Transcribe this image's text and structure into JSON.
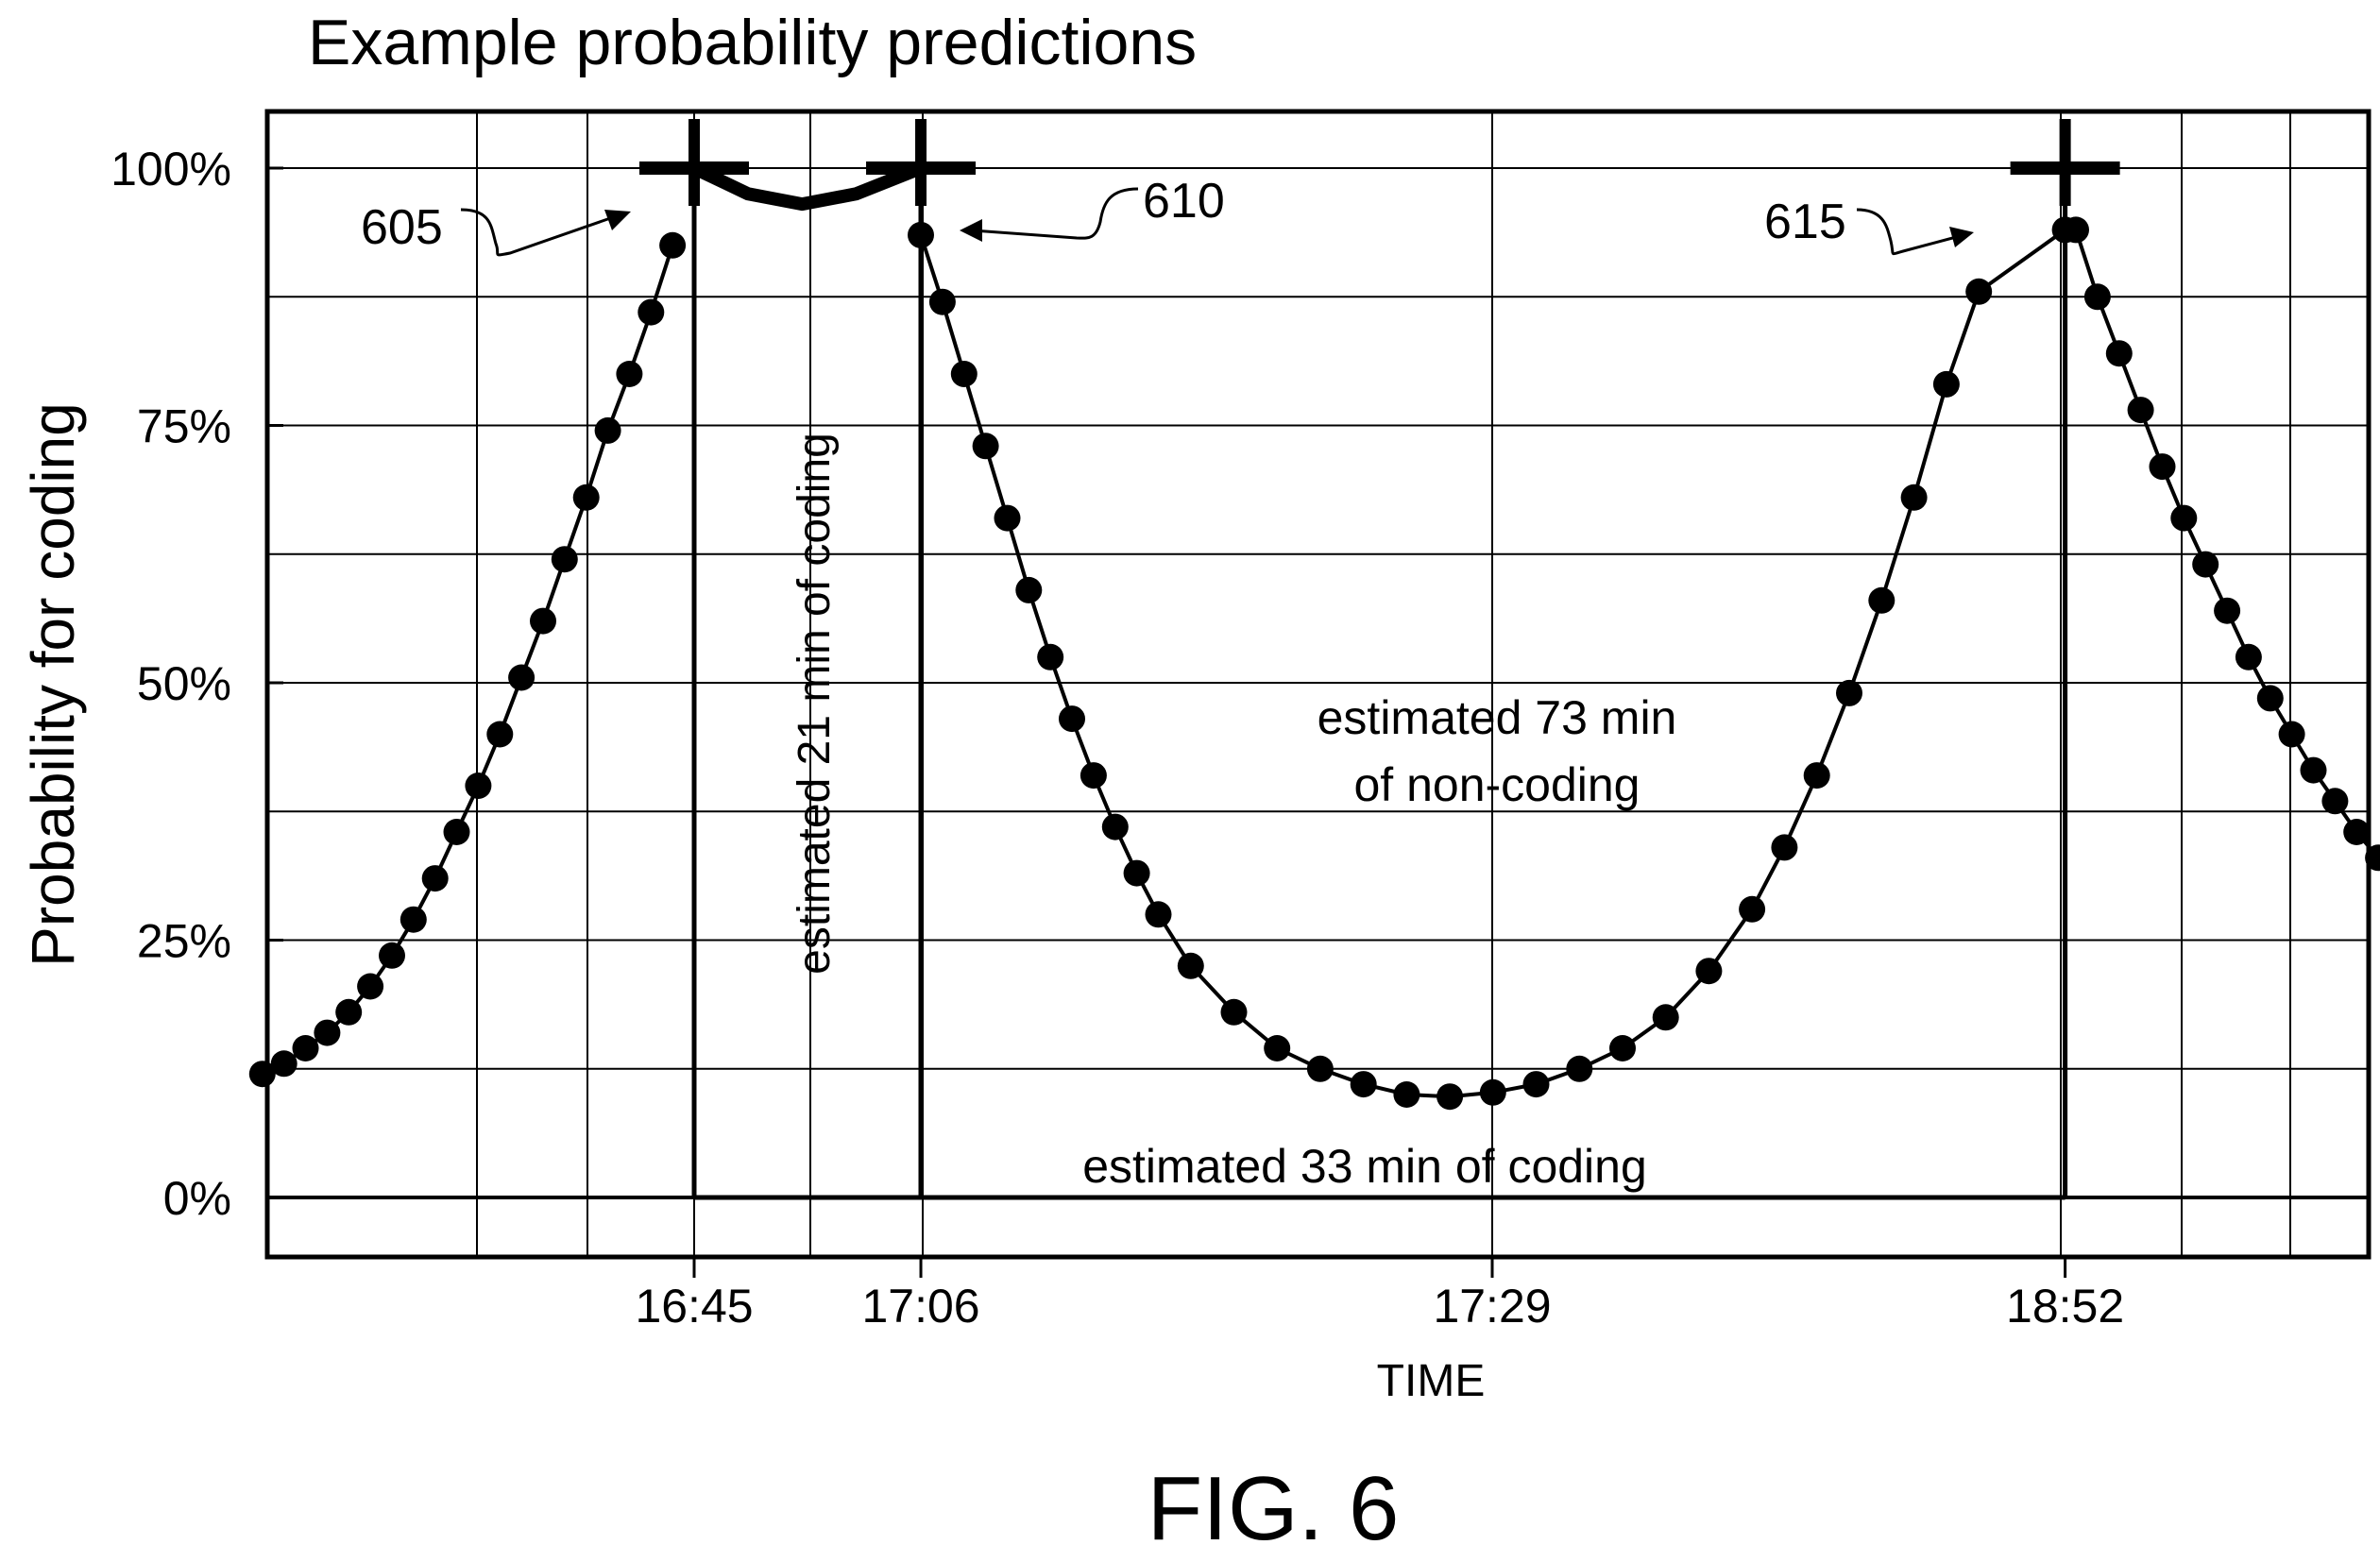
{
  "chart_data": {
    "type": "scatter",
    "title": "Example probability predictions",
    "xlabel": "TIME",
    "ylabel": "Probability for coding",
    "ylim": [
      0,
      100
    ],
    "grid": true,
    "y_ticks": [
      "0%",
      "25%",
      "50%",
      "75%",
      "100%"
    ],
    "x_ticks": [
      "16:45",
      "17:06",
      "17:29",
      "18:52"
    ],
    "figure_label": "FIG. 6",
    "callouts": [
      "605",
      "610",
      "615"
    ],
    "annotations": {
      "first_coding": "estimated 21 min of coding",
      "non_coding_line1": "estimated 73 min",
      "non_coding_line2": "of non-coding",
      "second_coding": "estimated 33 min of coding"
    },
    "coding_intervals": [
      {
        "start": "16:45",
        "end": "17:06"
      },
      {
        "start": "17:06",
        "end": "18:52"
      }
    ],
    "series": [
      {
        "segment": "before-16:45",
        "points": [
          [
            -40,
            12
          ],
          [
            -38,
            13
          ],
          [
            -36,
            14.5
          ],
          [
            -34,
            16
          ],
          [
            -32,
            18
          ],
          [
            -30,
            20.5
          ],
          [
            -28,
            23.5
          ],
          [
            -26,
            27
          ],
          [
            -24,
            31
          ],
          [
            -22,
            35.5
          ],
          [
            -20,
            40
          ],
          [
            -18,
            45
          ],
          [
            -16,
            50.5
          ],
          [
            -14,
            56
          ],
          [
            -12,
            62
          ],
          [
            -10,
            68
          ],
          [
            -8,
            74.5
          ],
          [
            -6,
            80
          ],
          [
            -4,
            86
          ],
          [
            -2,
            92.5
          ]
        ]
      },
      {
        "segment": "16:45-17:06",
        "points": [
          [
            0,
            100
          ],
          [
            5,
            97.5
          ],
          [
            10,
            96.5
          ],
          [
            15,
            97.5
          ],
          [
            21,
            100
          ]
        ]
      },
      {
        "segment": "17:06-18:52",
        "points": [
          [
            21,
            93.5
          ],
          [
            23,
            87
          ],
          [
            25,
            80
          ],
          [
            27,
            73
          ],
          [
            29,
            66
          ],
          [
            31,
            59
          ],
          [
            33,
            52.5
          ],
          [
            35,
            46.5
          ],
          [
            37,
            41
          ],
          [
            39,
            36
          ],
          [
            41,
            31.5
          ],
          [
            43,
            27.5
          ],
          [
            46,
            22.5
          ],
          [
            50,
            18
          ],
          [
            54,
            14.5
          ],
          [
            58,
            12.5
          ],
          [
            62,
            11
          ],
          [
            66,
            10
          ],
          [
            70,
            9.8
          ],
          [
            74,
            10.2
          ],
          [
            78,
            11
          ],
          [
            82,
            12.5
          ],
          [
            86,
            14.5
          ],
          [
            90,
            17.5
          ],
          [
            94,
            22
          ],
          [
            98,
            28
          ],
          [
            101,
            34
          ],
          [
            104,
            41
          ],
          [
            107,
            49
          ],
          [
            110,
            58
          ],
          [
            113,
            68
          ],
          [
            116,
            79
          ],
          [
            119,
            88
          ],
          [
            127,
            94
          ]
        ]
      },
      {
        "segment": "after-18:52",
        "points": [
          [
            128,
            94
          ],
          [
            130,
            87.5
          ],
          [
            132,
            82
          ],
          [
            134,
            76.5
          ],
          [
            136,
            71
          ],
          [
            138,
            66
          ],
          [
            140,
            61.5
          ],
          [
            142,
            57
          ],
          [
            144,
            52.5
          ],
          [
            146,
            48.5
          ],
          [
            148,
            45
          ],
          [
            150,
            41.5
          ],
          [
            152,
            38.5
          ],
          [
            154,
            35.5
          ],
          [
            156,
            33
          ],
          [
            158,
            30.5
          ],
          [
            160,
            28.5
          ]
        ]
      }
    ]
  }
}
